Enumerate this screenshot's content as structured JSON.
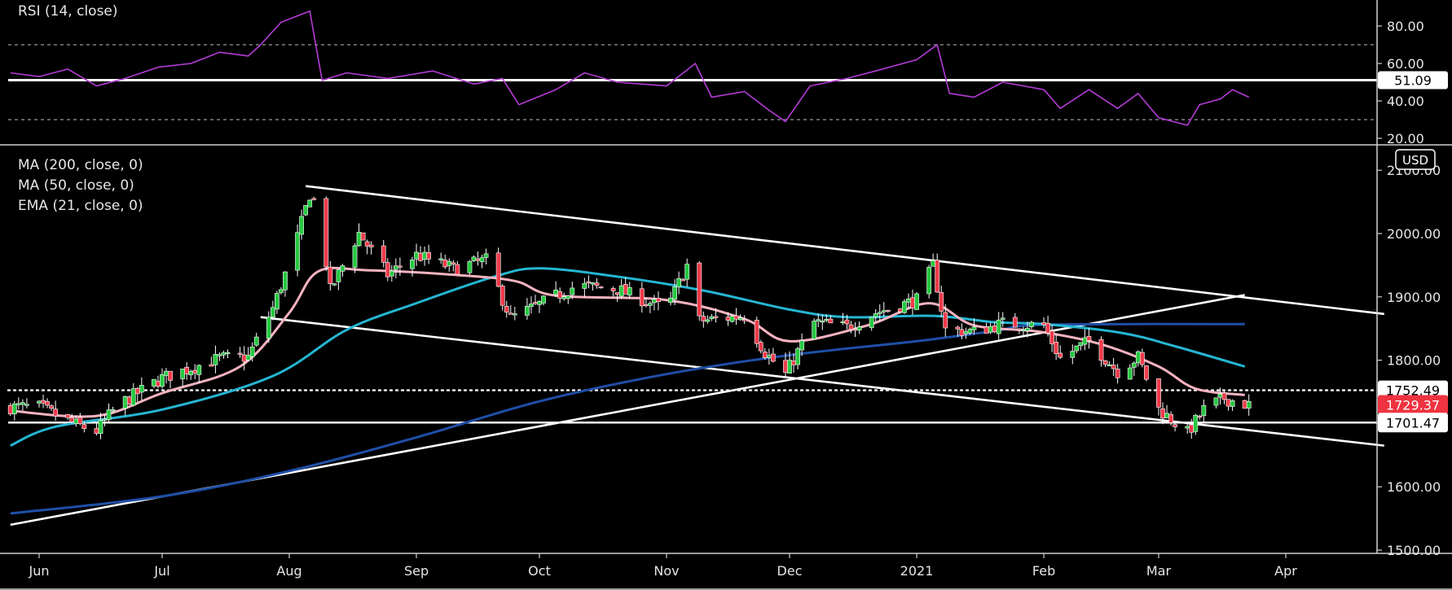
{
  "chart_data": {
    "type": "candlestick",
    "currency_label": "USD",
    "x_ticks": [
      "Jun",
      "Jul",
      "Aug",
      "Sep",
      "Oct",
      "Nov",
      "Dec",
      "2021",
      "Feb",
      "Mar",
      "Apr"
    ],
    "price_axis": {
      "ticks": [
        "1500.00",
        "1600.00",
        "1700.00",
        "1800.00",
        "1900.00",
        "2000.00",
        "2100.00"
      ],
      "ylim": [
        1500,
        2140
      ]
    },
    "rsi_axis": {
      "ticks": [
        "20.00",
        "40.00",
        "60.00",
        "80.00"
      ],
      "ylim": [
        16,
        92
      ],
      "dashed_levels": [
        70,
        30
      ]
    },
    "legend": {
      "rsi": "RSI (14, close)",
      "ma200": "MA (200, close, 0)",
      "ma50": "MA (50, close, 0)",
      "ema21": "EMA (21, close, 0)"
    },
    "price_labels": [
      {
        "name": "resistance",
        "value": 1752.49,
        "text": "1752.49",
        "bg": "#ffffff",
        "fg": "#000000"
      },
      {
        "name": "last-price",
        "value": 1729.37,
        "text": "1729.37",
        "bg": "#ef3340",
        "fg": "#ffffff"
      },
      {
        "name": "support",
        "value": 1701.47,
        "text": "1701.47",
        "bg": "#ffffff",
        "fg": "#000000"
      }
    ],
    "rsi_label": {
      "value": 51.09,
      "text": "51.09"
    },
    "horizontal_lines": [
      {
        "value": 1752.49,
        "style": "dotted"
      },
      {
        "value": 1701.47,
        "style": "solid"
      }
    ],
    "trendlines": [
      {
        "from": [
          "2020-08-05",
          2075
        ],
        "to": [
          "2021-04-25",
          1873
        ]
      },
      {
        "from": [
          "2020-07-25",
          1868
        ],
        "to": [
          "2021-04-25",
          1665
        ]
      },
      {
        "from": [
          "2020-05-25",
          1540
        ],
        "to": [
          "2021-03-22",
          1903
        ]
      }
    ],
    "ma200": [
      [
        "2020-05-25",
        1558
      ],
      [
        "2020-07-01",
        1585
      ],
      [
        "2020-08-01",
        1625
      ],
      [
        "2020-09-01",
        1678
      ],
      [
        "2020-10-01",
        1735
      ],
      [
        "2020-11-01",
        1778
      ],
      [
        "2020-12-01",
        1808
      ],
      [
        "2021-01-01",
        1830
      ],
      [
        "2021-01-20",
        1846
      ],
      [
        "2021-02-01",
        1856
      ],
      [
        "2021-03-22",
        1857
      ]
    ],
    "ma50": [
      [
        "2020-05-25",
        1665
      ],
      [
        "2020-06-05",
        1695
      ],
      [
        "2020-07-01",
        1722
      ],
      [
        "2020-07-28",
        1775
      ],
      [
        "2020-08-15",
        1848
      ],
      [
        "2020-09-01",
        1890
      ],
      [
        "2020-09-20",
        1932
      ],
      [
        "2020-10-01",
        1945
      ],
      [
        "2020-10-20",
        1932
      ],
      [
        "2020-11-10",
        1910
      ],
      [
        "2020-12-01",
        1880
      ],
      [
        "2020-12-15",
        1868
      ],
      [
        "2021-01-05",
        1870
      ],
      [
        "2021-01-20",
        1860
      ],
      [
        "2021-02-01",
        1857
      ],
      [
        "2021-02-20",
        1843
      ],
      [
        "2021-03-05",
        1822
      ],
      [
        "2021-03-22",
        1790
      ]
    ],
    "ema21": [
      [
        "2020-05-25",
        1720
      ],
      [
        "2020-06-15",
        1712
      ],
      [
        "2020-07-01",
        1748
      ],
      [
        "2020-07-20",
        1790
      ],
      [
        "2020-08-01",
        1875
      ],
      [
        "2020-08-08",
        1940
      ],
      [
        "2020-08-20",
        1942
      ],
      [
        "2020-09-10",
        1935
      ],
      [
        "2020-09-25",
        1925
      ],
      [
        "2020-10-05",
        1902
      ],
      [
        "2020-11-01",
        1895
      ],
      [
        "2020-11-20",
        1865
      ],
      [
        "2020-12-01",
        1830
      ],
      [
        "2020-12-20",
        1855
      ],
      [
        "2021-01-04",
        1890
      ],
      [
        "2021-01-15",
        1855
      ],
      [
        "2021-01-31",
        1845
      ],
      [
        "2021-02-15",
        1825
      ],
      [
        "2021-03-01",
        1790
      ],
      [
        "2021-03-10",
        1755
      ],
      [
        "2021-03-22",
        1745
      ]
    ],
    "rsi": [
      [
        "2020-05-25",
        55
      ],
      [
        "2020-06-01",
        53
      ],
      [
        "2020-06-08",
        57
      ],
      [
        "2020-06-15",
        48
      ],
      [
        "2020-06-22",
        52
      ],
      [
        "2020-06-30",
        58
      ],
      [
        "2020-07-08",
        60
      ],
      [
        "2020-07-15",
        66
      ],
      [
        "2020-07-22",
        64
      ],
      [
        "2020-07-25",
        70
      ],
      [
        "2020-07-30",
        82
      ],
      [
        "2020-08-06",
        88
      ],
      [
        "2020-08-09",
        51
      ],
      [
        "2020-08-15",
        55
      ],
      [
        "2020-08-25",
        52
      ],
      [
        "2020-09-05",
        56
      ],
      [
        "2020-09-15",
        49
      ],
      [
        "2020-09-22",
        52
      ],
      [
        "2020-09-26",
        38
      ],
      [
        "2020-10-05",
        46
      ],
      [
        "2020-10-12",
        55
      ],
      [
        "2020-10-20",
        50
      ],
      [
        "2020-11-01",
        48
      ],
      [
        "2020-11-08",
        60
      ],
      [
        "2020-11-12",
        42
      ],
      [
        "2020-11-20",
        45
      ],
      [
        "2020-11-26",
        35
      ],
      [
        "2020-11-30",
        29
      ],
      [
        "2020-12-06",
        48
      ],
      [
        "2020-12-15",
        52
      ],
      [
        "2020-12-22",
        56
      ],
      [
        "2021-01-01",
        62
      ],
      [
        "2021-01-06",
        70
      ],
      [
        "2021-01-09",
        44
      ],
      [
        "2021-01-15",
        42
      ],
      [
        "2021-01-22",
        50
      ],
      [
        "2021-02-01",
        46
      ],
      [
        "2021-02-05",
        36
      ],
      [
        "2021-02-12",
        46
      ],
      [
        "2021-02-19",
        36
      ],
      [
        "2021-02-24",
        44
      ],
      [
        "2021-03-01",
        31
      ],
      [
        "2021-03-08",
        27
      ],
      [
        "2021-03-11",
        38
      ],
      [
        "2021-03-16",
        41
      ],
      [
        "2021-03-19",
        46
      ],
      [
        "2021-03-23",
        42
      ]
    ],
    "candles_source": [
      [
        "2020-06-01",
        1726
      ],
      [
        "2020-06-10",
        1698
      ],
      [
        "2020-06-15",
        1688
      ],
      [
        "2020-06-20",
        1728
      ],
      [
        "2020-07-01",
        1772
      ],
      [
        "2020-07-15",
        1803
      ],
      [
        "2020-07-22",
        1805
      ],
      [
        "2020-07-28",
        1882
      ],
      [
        "2020-08-02",
        1972
      ],
      [
        "2020-08-06",
        2062
      ],
      [
        "2020-08-08",
        2042
      ],
      [
        "2020-08-11",
        1910
      ],
      [
        "2020-08-18",
        2001
      ],
      [
        "2020-08-25",
        1935
      ],
      [
        "2020-09-01",
        1966
      ],
      [
        "2020-09-10",
        1945
      ],
      [
        "2020-09-18",
        1958
      ],
      [
        "2020-09-24",
        1866
      ],
      [
        "2020-10-01",
        1888
      ],
      [
        "2020-10-10",
        1918
      ],
      [
        "2020-10-20",
        1912
      ],
      [
        "2020-11-01",
        1880
      ],
      [
        "2020-11-06",
        1950
      ],
      [
        "2020-11-09",
        1862
      ],
      [
        "2020-11-20",
        1870
      ],
      [
        "2020-11-25",
        1812
      ],
      [
        "2020-11-30",
        1778
      ],
      [
        "2020-12-07",
        1860
      ],
      [
        "2020-12-15",
        1852
      ],
      [
        "2020-12-22",
        1875
      ],
      [
        "2021-01-01",
        1895
      ],
      [
        "2021-01-05",
        1950
      ],
      [
        "2021-01-08",
        1848
      ],
      [
        "2021-01-15",
        1845
      ],
      [
        "2021-01-22",
        1858
      ],
      [
        "2021-02-01",
        1855
      ],
      [
        "2021-02-05",
        1803
      ],
      [
        "2021-02-12",
        1830
      ],
      [
        "2021-02-19",
        1782
      ],
      [
        "2021-02-24",
        1805
      ],
      [
        "2021-03-01",
        1723
      ],
      [
        "2021-03-08",
        1685
      ],
      [
        "2021-03-12",
        1722
      ],
      [
        "2021-03-17",
        1740
      ],
      [
        "2021-03-23",
        1729
      ]
    ]
  }
}
